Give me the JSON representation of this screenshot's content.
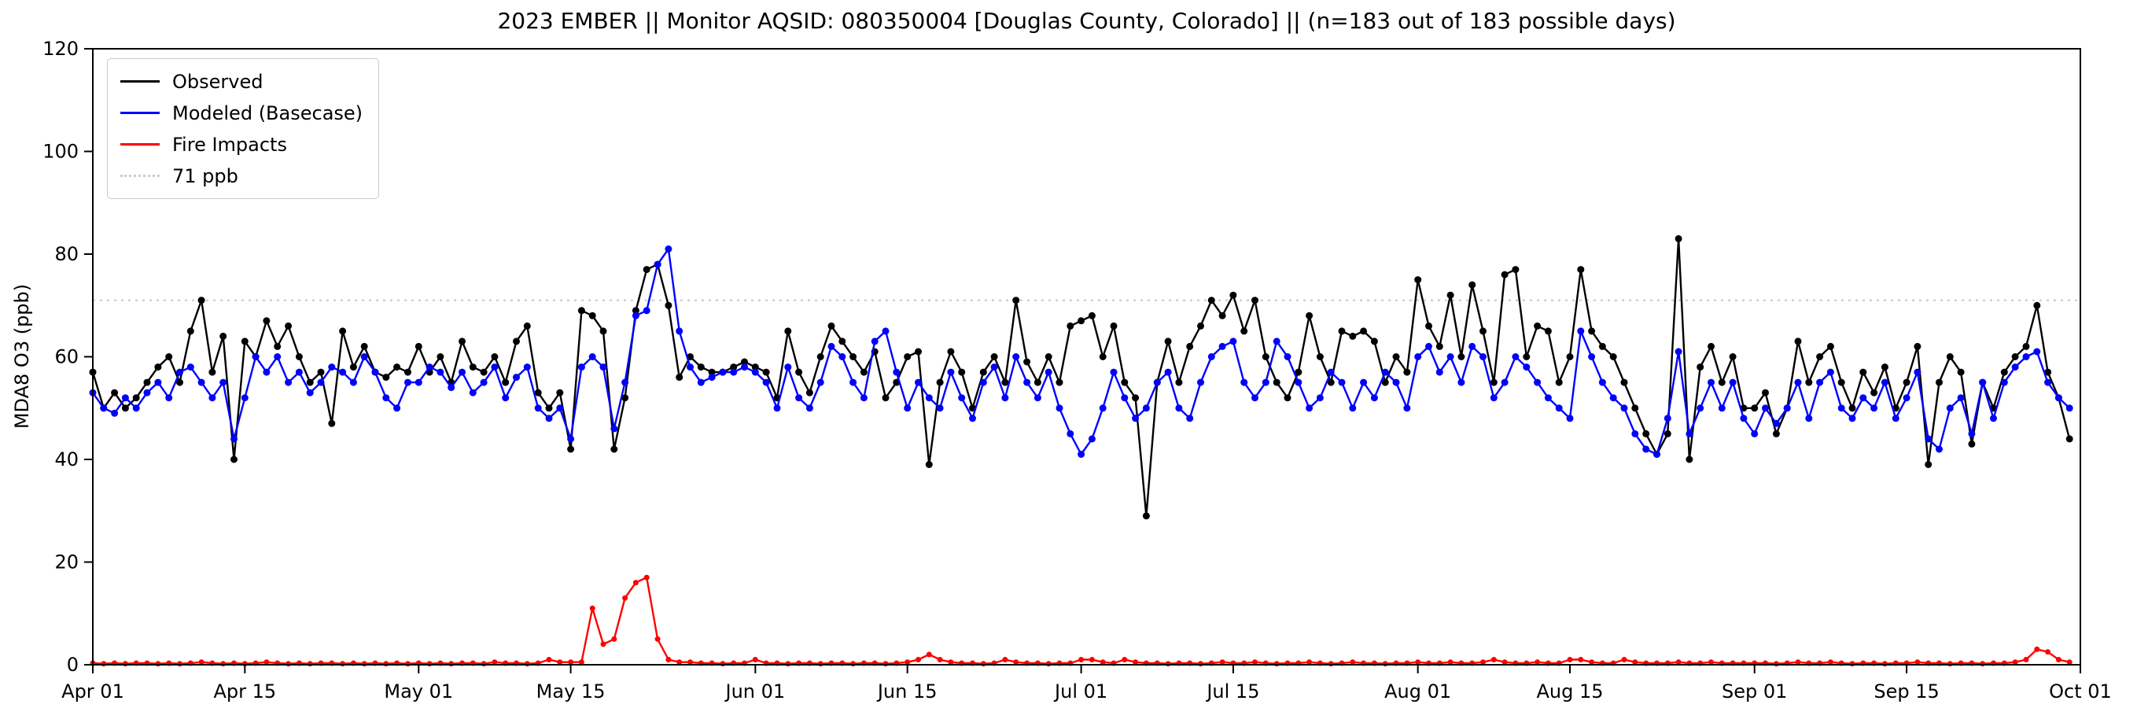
{
  "chart_data": {
    "type": "line",
    "title": "2023 EMBER || Monitor AQSID: 080350004 [Douglas County, Colorado] || (n=183 out of 183 possible days)",
    "xlabel": "",
    "ylabel": "MDA8 O3 (ppb)",
    "ylim": [
      0,
      120
    ],
    "yticks": [
      0,
      20,
      40,
      60,
      80,
      100,
      120
    ],
    "grid": false,
    "legend_position": "upper left",
    "x_axis": {
      "x_max": 183,
      "tick_positions": [
        0,
        14,
        30,
        44,
        61,
        75,
        91,
        105,
        122,
        136,
        153,
        167,
        183
      ],
      "tick_labels": [
        "Apr 01",
        "Apr 15",
        "May 01",
        "May 15",
        "Jun 01",
        "Jun 15",
        "Jul 01",
        "Jul 15",
        "Aug 01",
        "Aug 15",
        "Sep 01",
        "Sep 15",
        "Oct 01"
      ]
    },
    "threshold": {
      "value": 71,
      "label": "71 ppb",
      "color": "#cccccc",
      "style": "dotted"
    },
    "legend": [
      {
        "label": "Observed",
        "color": "#000000",
        "style": "solid"
      },
      {
        "label": "Modeled (Basecase)",
        "color": "#0000ff",
        "style": "solid"
      },
      {
        "label": "Fire Impacts",
        "color": "#ff0000",
        "style": "solid"
      },
      {
        "label": "71 ppb",
        "color": "#cccccc",
        "style": "dotted"
      }
    ],
    "series": [
      {
        "name": "Observed",
        "color": "#000000",
        "marker_radius": 4.5,
        "values": [
          57,
          50,
          53,
          50,
          52,
          55,
          58,
          60,
          55,
          65,
          71,
          57,
          64,
          40,
          63,
          60,
          67,
          62,
          66,
          60,
          55,
          57,
          47,
          65,
          58,
          62,
          57,
          56,
          58,
          57,
          62,
          57,
          60,
          55,
          63,
          58,
          57,
          60,
          55,
          63,
          66,
          53,
          50,
          53,
          42,
          69,
          68,
          65,
          42,
          52,
          69,
          77,
          78,
          70,
          56,
          60,
          58,
          57,
          57,
          58,
          59,
          58,
          57,
          52,
          65,
          57,
          53,
          60,
          66,
          63,
          60,
          57,
          61,
          52,
          55,
          60,
          61,
          39,
          55,
          61,
          57,
          50,
          57,
          60,
          55,
          71,
          59,
          55,
          60,
          55,
          66,
          67,
          68,
          60,
          66,
          55,
          52,
          29,
          55,
          63,
          55,
          62,
          66,
          71,
          68,
          72,
          65,
          71,
          60,
          55,
          52,
          57,
          68,
          60,
          55,
          65,
          64,
          65,
          63,
          55,
          60,
          57,
          75,
          66,
          62,
          72,
          60,
          74,
          65,
          55,
          76,
          77,
          60,
          66,
          65,
          55,
          60,
          77,
          65,
          62,
          60,
          55,
          50,
          45,
          41,
          45,
          83,
          40,
          58,
          62,
          55,
          60,
          50,
          50,
          53,
          45,
          50,
          63,
          55,
          60,
          62,
          55,
          50,
          57,
          53,
          58,
          50,
          55,
          62,
          39,
          55,
          60,
          57,
          43,
          55,
          50,
          57,
          60,
          62,
          70,
          57,
          52,
          44
        ]
      },
      {
        "name": "Modeled (Basecase)",
        "color": "#0000ff",
        "marker_radius": 4.5,
        "values": [
          53,
          50,
          49,
          52,
          50,
          53,
          55,
          52,
          57,
          58,
          55,
          52,
          55,
          44,
          52,
          60,
          57,
          60,
          55,
          57,
          53,
          55,
          58,
          57,
          55,
          60,
          57,
          52,
          50,
          55,
          55,
          58,
          57,
          54,
          57,
          53,
          55,
          58,
          52,
          56,
          58,
          50,
          48,
          50,
          44,
          58,
          60,
          58,
          46,
          55,
          68,
          69,
          78,
          81,
          65,
          58,
          55,
          56,
          57,
          57,
          58,
          57,
          55,
          50,
          58,
          52,
          50,
          55,
          62,
          60,
          55,
          52,
          63,
          65,
          57,
          50,
          55,
          52,
          50,
          57,
          52,
          48,
          55,
          58,
          52,
          60,
          55,
          52,
          57,
          50,
          45,
          41,
          44,
          50,
          57,
          52,
          48,
          50,
          55,
          57,
          50,
          48,
          55,
          60,
          62,
          63,
          55,
          52,
          55,
          63,
          60,
          55,
          50,
          52,
          57,
          55,
          50,
          55,
          52,
          57,
          55,
          50,
          60,
          62,
          57,
          60,
          55,
          62,
          60,
          52,
          55,
          60,
          58,
          55,
          52,
          50,
          48,
          65,
          60,
          55,
          52,
          50,
          45,
          42,
          41,
          48,
          61,
          45,
          50,
          55,
          50,
          55,
          48,
          45,
          50,
          47,
          50,
          55,
          48,
          55,
          57,
          50,
          48,
          52,
          50,
          55,
          48,
          52,
          57,
          44,
          42,
          50,
          52,
          45,
          55,
          48,
          55,
          58,
          60,
          61,
          55,
          52,
          50
        ]
      },
      {
        "name": "Fire Impacts",
        "color": "#ff0000",
        "marker_radius": 3.5,
        "values": [
          0.3,
          0.2,
          0.3,
          0.2,
          0.3,
          0.3,
          0.2,
          0.3,
          0.2,
          0.3,
          0.5,
          0.3,
          0.2,
          0.3,
          0.2,
          0.3,
          0.5,
          0.3,
          0.2,
          0.3,
          0.2,
          0.3,
          0.3,
          0.2,
          0.3,
          0.2,
          0.3,
          0.2,
          0.3,
          0.2,
          0.3,
          0.2,
          0.3,
          0.2,
          0.3,
          0.3,
          0.2,
          0.5,
          0.3,
          0.3,
          0.2,
          0.3,
          1,
          0.5,
          0.5,
          0.5,
          11,
          4,
          5,
          13,
          16,
          17,
          5,
          1,
          0.5,
          0.5,
          0.3,
          0.3,
          0.2,
          0.3,
          0.3,
          1,
          0.3,
          0.3,
          0.2,
          0.3,
          0.3,
          0.2,
          0.3,
          0.3,
          0.2,
          0.3,
          0.3,
          0.2,
          0.3,
          0.5,
          1,
          2,
          1,
          0.5,
          0.3,
          0.3,
          0.2,
          0.3,
          1,
          0.5,
          0.3,
          0.3,
          0.2,
          0.3,
          0.3,
          1,
          1,
          0.5,
          0.3,
          1,
          0.5,
          0.3,
          0.3,
          0.2,
          0.3,
          0.3,
          0.2,
          0.3,
          0.5,
          0.3,
          0.3,
          0.5,
          0.3,
          0.2,
          0.3,
          0.3,
          0.5,
          0.3,
          0.2,
          0.3,
          0.5,
          0.3,
          0.3,
          0.2,
          0.3,
          0.3,
          0.5,
          0.3,
          0.3,
          0.5,
          0.3,
          0.3,
          0.5,
          1,
          0.5,
          0.3,
          0.3,
          0.5,
          0.3,
          0.3,
          1,
          1,
          0.5,
          0.3,
          0.3,
          1,
          0.5,
          0.3,
          0.3,
          0.3,
          0.5,
          0.3,
          0.3,
          0.5,
          0.3,
          0.3,
          0.3,
          0.3,
          0.3,
          0.2,
          0.3,
          0.5,
          0.3,
          0.3,
          0.5,
          0.3,
          0.2,
          0.3,
          0.3,
          0.2,
          0.3,
          0.3,
          0.5,
          0.3,
          0.3,
          0.2,
          0.3,
          0.3,
          0.2,
          0.3,
          0.3,
          0.5,
          1,
          3,
          2.5,
          1,
          0.5
        ]
      }
    ]
  }
}
